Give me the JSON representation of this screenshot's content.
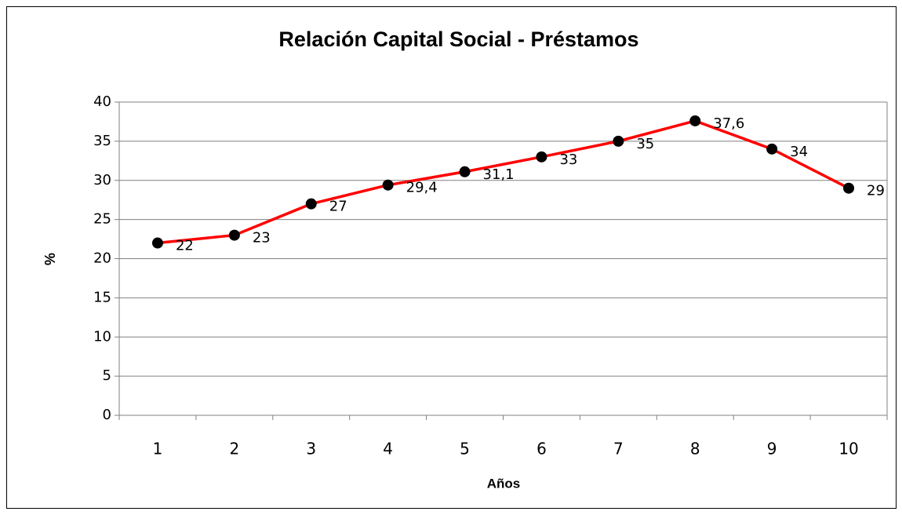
{
  "chart_data": {
    "type": "line",
    "title": "Relación Capital Social - Préstamos",
    "y_label": "%",
    "x_label": "Años",
    "categories": [
      "1",
      "2",
      "3",
      "4",
      "5",
      "6",
      "7",
      "8",
      "9",
      "10"
    ],
    "values": [
      22,
      23,
      27,
      29.4,
      31.1,
      33,
      35,
      37.6,
      34,
      29
    ],
    "value_labels": [
      "22",
      "23",
      "27",
      "29,4",
      "31,1",
      "33",
      "35",
      "37,6",
      "34",
      "29"
    ],
    "color": "#ff0000",
    "marker_color": "#000000",
    "ylim": [
      0,
      40
    ],
    "yticks": [
      0,
      5,
      10,
      15,
      20,
      25,
      30,
      35,
      40
    ],
    "grid": true
  }
}
